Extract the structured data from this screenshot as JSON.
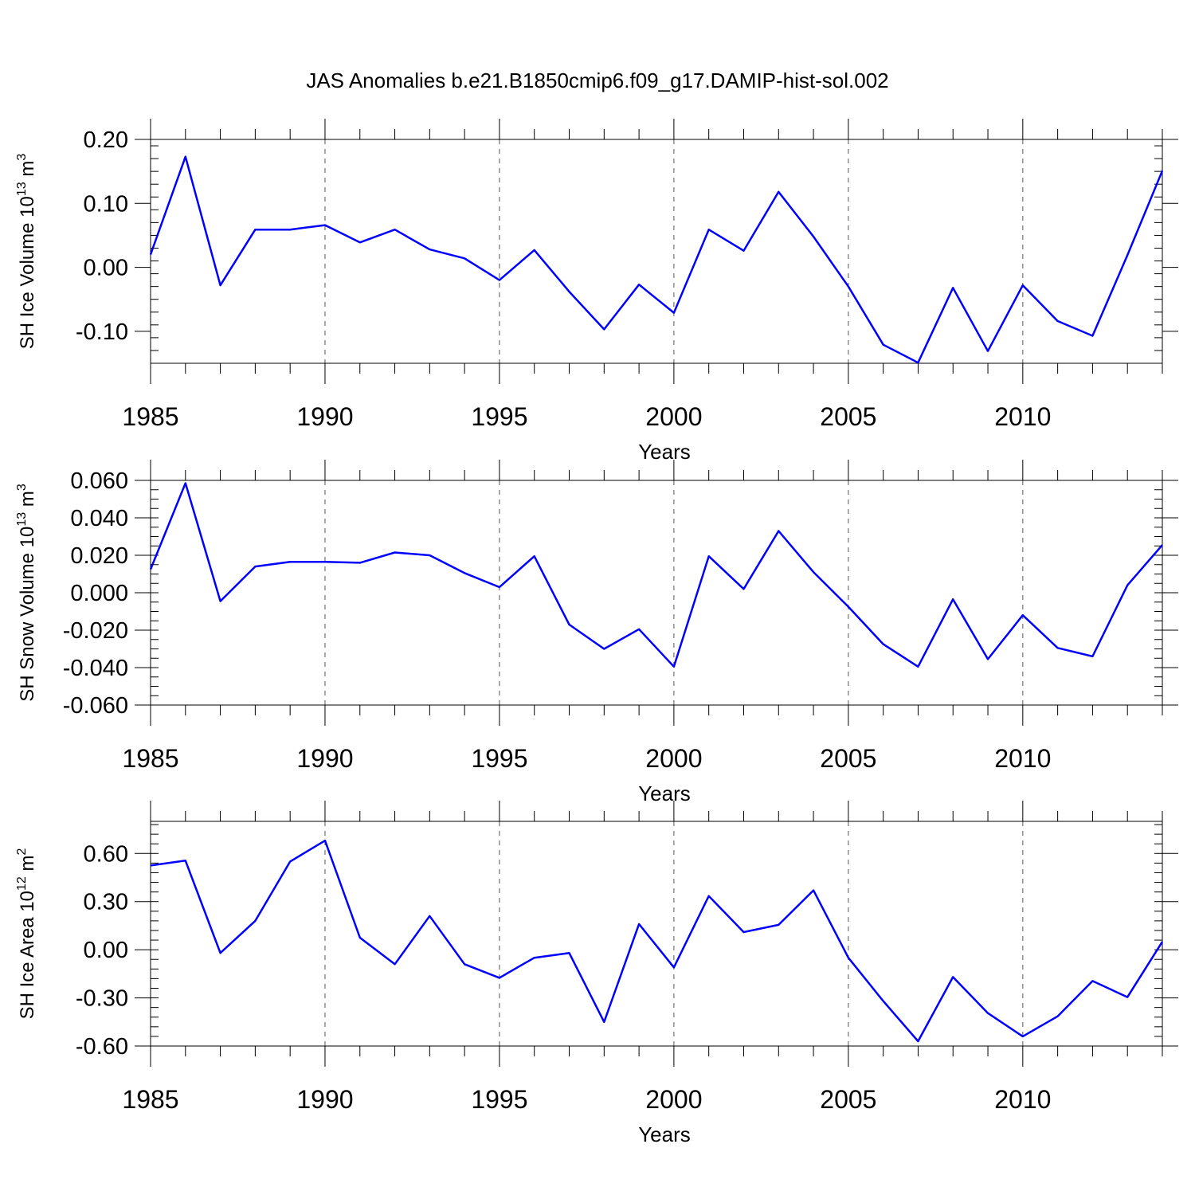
{
  "figure_title": "JAS Anomalies b.e21.B1850cmip6.f09_g17.DAMIP-hist-sol.002",
  "series_color": "#0000ff",
  "chart_data": [
    {
      "type": "line",
      "title": "JAS Anomalies b.e21.B1850cmip6.f09_g17.DAMIP-hist-sol.002",
      "xlabel": "Years",
      "ylabel_main": "SH Ice Volume 10",
      "ylabel_exp": "13",
      "ylabel_unit": "m",
      "ylabel_unit_exp": "3",
      "xlim": [
        1985,
        2014
      ],
      "ylim": [
        -0.15,
        0.2
      ],
      "grid": "vertical dashed at major x ticks",
      "x_ticks": [
        1985,
        1990,
        1995,
        2000,
        2005,
        2010
      ],
      "x_tick_labels": [
        "1985",
        "1990",
        "1995",
        "2000",
        "2005",
        "2010"
      ],
      "y_ticks": [
        0.2,
        0.1,
        0.0,
        -0.1
      ],
      "y_tick_labels": [
        "0.20",
        "0.10",
        "0.00",
        "-0.10"
      ],
      "y_minor_step": 0.02,
      "x": [
        1985,
        1986,
        1987,
        1988,
        1989,
        1990,
        1991,
        1992,
        1993,
        1994,
        1995,
        1996,
        1997,
        1998,
        1999,
        2000,
        2001,
        2002,
        2003,
        2004,
        2005,
        2006,
        2007,
        2008,
        2009,
        2010,
        2011,
        2012,
        2013,
        2014
      ],
      "y": [
        0.02,
        0.173,
        -0.028,
        0.059,
        0.059,
        0.066,
        0.039,
        0.059,
        0.028,
        0.014,
        -0.02,
        0.027,
        -0.038,
        -0.097,
        -0.027,
        -0.071,
        0.059,
        0.026,
        0.118,
        0.048,
        -0.03,
        -0.121,
        -0.149,
        -0.032,
        -0.131,
        -0.028,
        -0.084,
        -0.107,
        0.019,
        0.151
      ]
    },
    {
      "type": "line",
      "xlabel": "Years",
      "ylabel_main": "SH Snow Volume 10",
      "ylabel_exp": "13",
      "ylabel_unit": "m",
      "ylabel_unit_exp": "3",
      "xlim": [
        1985,
        2014
      ],
      "ylim": [
        -0.06,
        0.06
      ],
      "grid": "vertical dashed at major x ticks",
      "x_ticks": [
        1985,
        1990,
        1995,
        2000,
        2005,
        2010
      ],
      "x_tick_labels": [
        "1985",
        "1990",
        "1995",
        "2000",
        "2005",
        "2010"
      ],
      "y_ticks": [
        0.06,
        0.04,
        0.02,
        0.0,
        -0.02,
        -0.04,
        -0.06
      ],
      "y_tick_labels": [
        "0.060",
        "0.040",
        "0.020",
        "0.000",
        "-0.020",
        "-0.040",
        "-0.060"
      ],
      "y_minor_step": 0.005,
      "x": [
        1985,
        1986,
        1987,
        1988,
        1989,
        1990,
        1991,
        1992,
        1993,
        1994,
        1995,
        1996,
        1997,
        1998,
        1999,
        2000,
        2001,
        2002,
        2003,
        2004,
        2005,
        2006,
        2007,
        2008,
        2009,
        2010,
        2011,
        2012,
        2013,
        2014
      ],
      "y": [
        0.0125,
        0.0585,
        -0.0045,
        0.014,
        0.0165,
        0.0165,
        0.016,
        0.0215,
        0.02,
        0.0105,
        0.003,
        0.0195,
        -0.017,
        -0.03,
        -0.0195,
        -0.0395,
        0.0195,
        0.002,
        0.033,
        0.011,
        -0.0075,
        -0.0275,
        -0.0395,
        -0.0035,
        -0.0355,
        -0.012,
        -0.0295,
        -0.034,
        0.004,
        0.0255
      ]
    },
    {
      "type": "line",
      "xlabel": "Years",
      "ylabel_main": "SH Ice Area 10",
      "ylabel_exp": "12",
      "ylabel_unit": "m",
      "ylabel_unit_exp": "2",
      "xlim": [
        1985,
        2014
      ],
      "ylim": [
        -0.6,
        0.8
      ],
      "grid": "vertical dashed at major x ticks",
      "x_ticks": [
        1985,
        1990,
        1995,
        2000,
        2005,
        2010
      ],
      "x_tick_labels": [
        "1985",
        "1990",
        "1995",
        "2000",
        "2005",
        "2010"
      ],
      "y_ticks": [
        0.6,
        0.3,
        0.0,
        -0.3,
        -0.6
      ],
      "y_tick_labels": [
        "0.60",
        "0.30",
        "0.00",
        "-0.30",
        "-0.60"
      ],
      "y_minor_step": 0.06,
      "x": [
        1985,
        1986,
        1987,
        1988,
        1989,
        1990,
        1991,
        1992,
        1993,
        1994,
        1995,
        1996,
        1997,
        1998,
        1999,
        2000,
        2001,
        2002,
        2003,
        2004,
        2005,
        2006,
        2007,
        2008,
        2009,
        2010,
        2011,
        2012,
        2013,
        2014
      ],
      "y": [
        0.525,
        0.555,
        -0.02,
        0.18,
        0.55,
        0.68,
        0.075,
        -0.09,
        0.21,
        -0.09,
        -0.175,
        -0.05,
        -0.02,
        -0.45,
        0.16,
        -0.11,
        0.335,
        0.11,
        0.155,
        0.37,
        -0.05,
        -0.32,
        -0.57,
        -0.17,
        -0.395,
        -0.54,
        -0.415,
        -0.195,
        -0.295,
        0.05
      ]
    }
  ]
}
